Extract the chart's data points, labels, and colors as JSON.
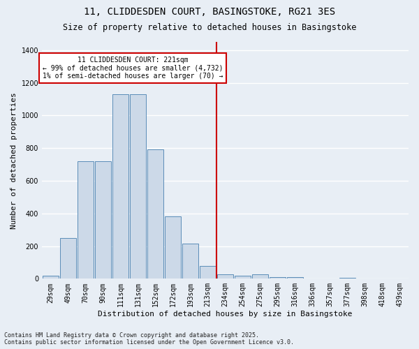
{
  "title": "11, CLIDDESDEN COURT, BASINGSTOKE, RG21 3ES",
  "subtitle": "Size of property relative to detached houses in Basingstoke",
  "xlabel": "Distribution of detached houses by size in Basingstoke",
  "ylabel": "Number of detached properties",
  "footnote": "Contains HM Land Registry data © Crown copyright and database right 2025.\nContains public sector information licensed under the Open Government Licence v3.0.",
  "bar_labels": [
    "29sqm",
    "49sqm",
    "70sqm",
    "90sqm",
    "111sqm",
    "131sqm",
    "152sqm",
    "172sqm",
    "193sqm",
    "213sqm",
    "234sqm",
    "254sqm",
    "275sqm",
    "295sqm",
    "316sqm",
    "336sqm",
    "357sqm",
    "377sqm",
    "398sqm",
    "418sqm",
    "439sqm"
  ],
  "bar_values": [
    20,
    250,
    720,
    720,
    1130,
    1130,
    790,
    380,
    215,
    80,
    25,
    20,
    25,
    10,
    10,
    0,
    0,
    5,
    0,
    0,
    0
  ],
  "bar_color": "#ccd9e8",
  "bar_edge_color": "#5b8db8",
  "annotation_line_label": "11 CLIDDESDEN COURT: 221sqm",
  "annotation_text_line2": "← 99% of detached houses are smaller (4,732)",
  "annotation_text_line3": "1% of semi-detached houses are larger (70) →",
  "annotation_box_color": "#ffffff",
  "annotation_box_edge": "#cc0000",
  "vline_color": "#cc0000",
  "vline_x_index": 9.5,
  "ylim": [
    0,
    1450
  ],
  "yticks": [
    0,
    200,
    400,
    600,
    800,
    1000,
    1200,
    1400
  ],
  "background_color": "#e8eef5",
  "grid_color": "#ffffff",
  "title_fontsize": 10,
  "subtitle_fontsize": 8.5,
  "axis_label_fontsize": 8,
  "tick_fontsize": 7,
  "annotation_fontsize": 7
}
